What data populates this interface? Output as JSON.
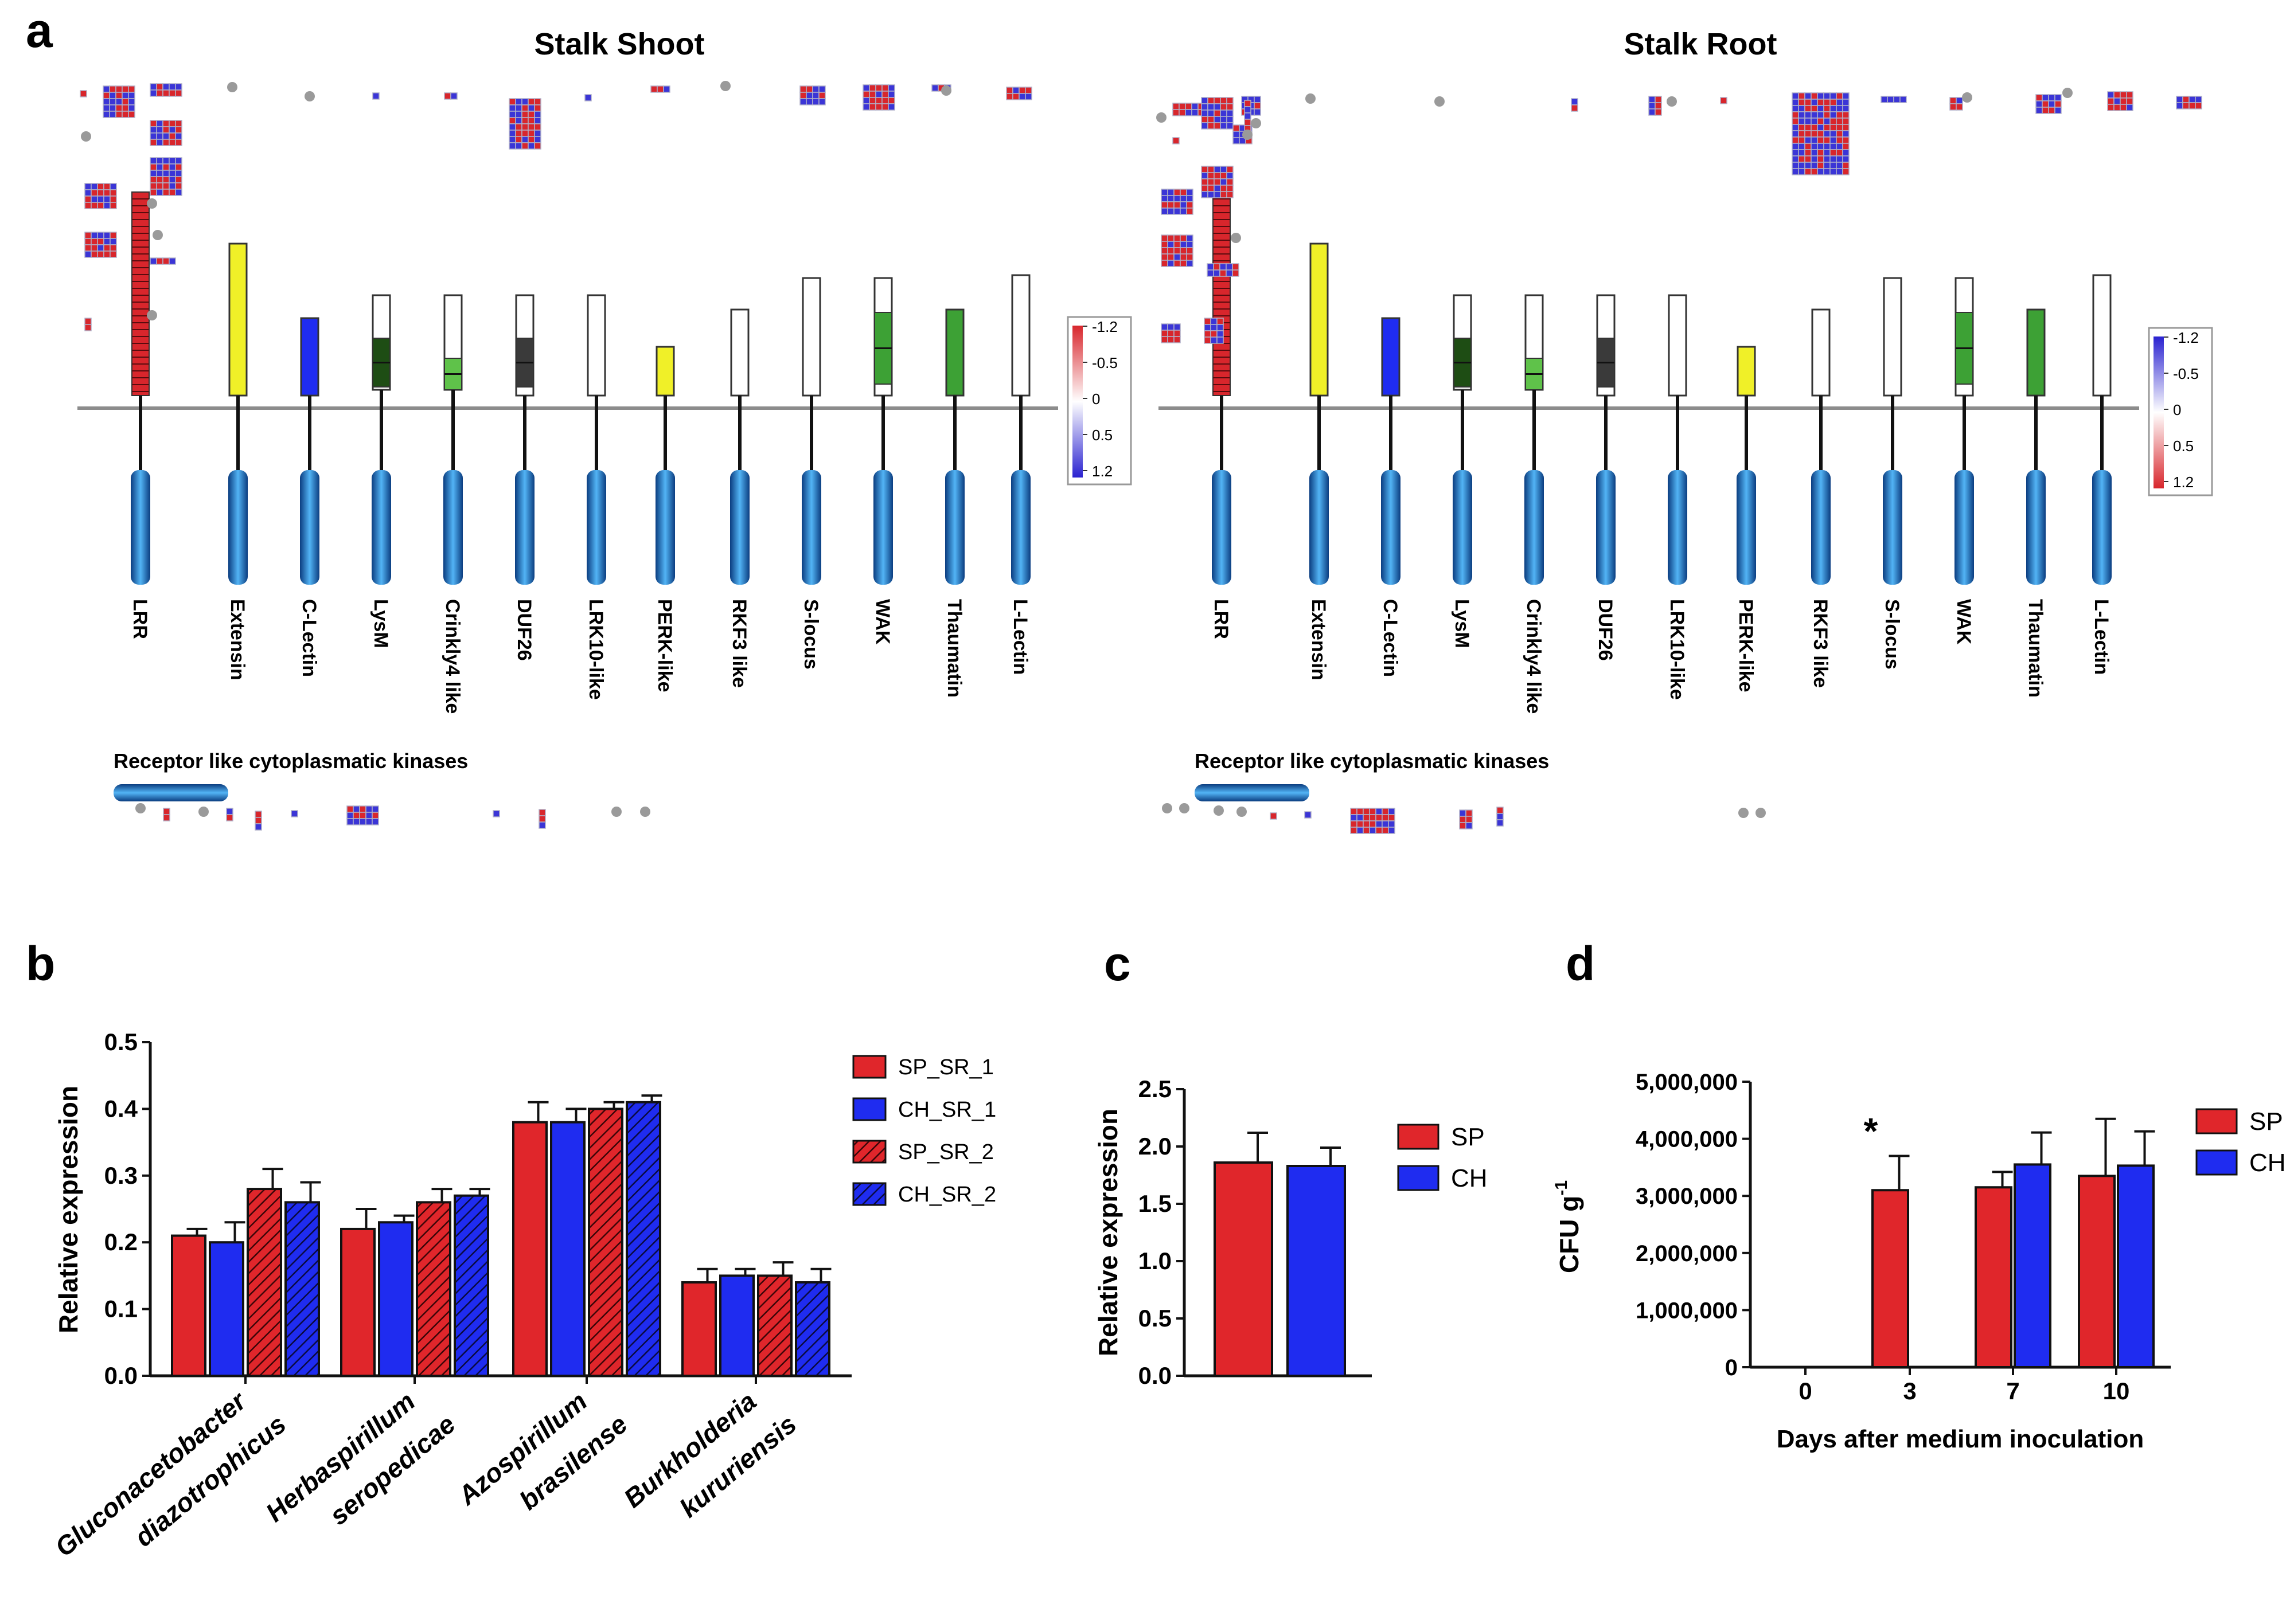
{
  "panels": {
    "a": "a",
    "b": "b",
    "c": "c",
    "d": "d"
  },
  "colors": {
    "red": "#e0262b",
    "blue": "#1f2cf0",
    "heat_red": "#d8262c",
    "heat_blue": "#3b35d6",
    "yellow": "#f0f028",
    "green_light": "#5fc24a",
    "green_mid": "#3da135",
    "green_dark": "#1e4d14",
    "gray_dark": "#3a3a3a",
    "kinase_blue": "#1a6fc4"
  },
  "panel_a": {
    "shoot": {
      "title": "Stalk Shoot",
      "legend": {
        "labels": [
          "-1.2",
          "-0.5",
          "0",
          "0.5",
          "1.2"
        ]
      }
    },
    "root": {
      "title": "Stalk Root",
      "legend": {
        "labels": [
          "-1.2",
          "-0.5",
          "0",
          "0.5",
          "1.2"
        ]
      }
    },
    "domains": [
      {
        "name": "LRR",
        "icon": "lrr-striped-box",
        "fill": "red"
      },
      {
        "name": "Extensin",
        "icon": "yellow-box",
        "fill": "yellow"
      },
      {
        "name": "C-Lectin",
        "icon": "blue-box",
        "fill": "blue"
      },
      {
        "name": "LysM",
        "icon": "white-box-dark-green",
        "fill": "green_dark"
      },
      {
        "name": "Crinkly4 like",
        "icon": "white-box-light-green",
        "fill": "green_light"
      },
      {
        "name": "DUF26",
        "icon": "white-box-gray",
        "fill": "gray_dark"
      },
      {
        "name": "LRK10-like",
        "icon": "white-box",
        "fill": "white"
      },
      {
        "name": "PERK-like",
        "icon": "yellow-box",
        "fill": "yellow"
      },
      {
        "name": "RKF3 like",
        "icon": "white-box",
        "fill": "white"
      },
      {
        "name": "S-locus",
        "icon": "white-box",
        "fill": "white"
      },
      {
        "name": "WAK",
        "icon": "white-box-green",
        "fill": "green_mid"
      },
      {
        "name": "Thaumatin",
        "icon": "green-box",
        "fill": "green_mid"
      },
      {
        "name": "L-Lectin",
        "icon": "white-box",
        "fill": "white"
      }
    ],
    "cytoplasmic_label": "Receptor like cytoplasmatic kinases"
  },
  "chart_data": [
    {
      "panel": "b",
      "type": "bar",
      "title": "",
      "xlabel": "",
      "ylabel": "Relative expression",
      "ylim": [
        0,
        0.5
      ],
      "yticks": [
        "0.0",
        "0.1",
        "0.2",
        "0.3",
        "0.4",
        "0.5"
      ],
      "category_lines": [
        [
          "Gluconacetobacter",
          "diazotrophicus"
        ],
        [
          "Herbaspirillum",
          "seropedicae"
        ],
        [
          "Azospirillum",
          "brasilense"
        ],
        [
          "Burkholderia",
          "kururiensis"
        ]
      ],
      "series": [
        {
          "name": "SP_SR_1",
          "color": "red",
          "pattern": "solid",
          "values": [
            0.21,
            0.22,
            0.38,
            0.14
          ],
          "errors": [
            0.01,
            0.03,
            0.03,
            0.02
          ]
        },
        {
          "name": "CH_SR_1",
          "color": "blue",
          "pattern": "solid",
          "values": [
            0.2,
            0.23,
            0.38,
            0.15
          ],
          "errors": [
            0.03,
            0.01,
            0.02,
            0.01
          ]
        },
        {
          "name": "SP_SR_2",
          "color": "red",
          "pattern": "hatched",
          "values": [
            0.28,
            0.26,
            0.4,
            0.15
          ],
          "errors": [
            0.03,
            0.02,
            0.01,
            0.02
          ]
        },
        {
          "name": "CH_SR_2",
          "color": "blue",
          "pattern": "hatched",
          "values": [
            0.26,
            0.27,
            0.41,
            0.14
          ],
          "errors": [
            0.03,
            0.01,
            0.01,
            0.02
          ]
        }
      ],
      "legend": "right"
    },
    {
      "panel": "c",
      "type": "bar",
      "title": "",
      "xlabel": "",
      "ylabel": "Relative expression",
      "ylim": [
        0,
        2.5
      ],
      "yticks": [
        "0.0",
        "0.5",
        "1.0",
        "1.5",
        "2.0",
        "2.5"
      ],
      "series": [
        {
          "name": "SP",
          "color": "red",
          "values": [
            1.86
          ],
          "errors": [
            0.26
          ]
        },
        {
          "name": "CH",
          "color": "blue",
          "values": [
            1.83
          ],
          "errors": [
            0.16
          ]
        }
      ],
      "legend": "right"
    },
    {
      "panel": "d",
      "type": "bar",
      "title": "",
      "xlabel": "Days after medium  inoculation",
      "ylabel": "CFU g",
      "ylabel_sup": "-1",
      "ylim": [
        0,
        5000000
      ],
      "yticks": [
        "0",
        "1,000,000",
        "2,000,000",
        "3,000,000",
        "4,000,000",
        "5,000,000"
      ],
      "categories": [
        "0",
        "3",
        "7",
        "10"
      ],
      "annotation": "*",
      "series": [
        {
          "name": "SP",
          "color": "red",
          "values": [
            0,
            3100000,
            3150000,
            3350000
          ],
          "errors": [
            0,
            600000,
            270000,
            1000000
          ]
        },
        {
          "name": "CH",
          "color": "blue",
          "values": [
            0,
            0,
            3550000,
            3530000
          ],
          "errors": [
            0,
            0,
            560000,
            600000
          ]
        }
      ],
      "legend": "right"
    }
  ]
}
